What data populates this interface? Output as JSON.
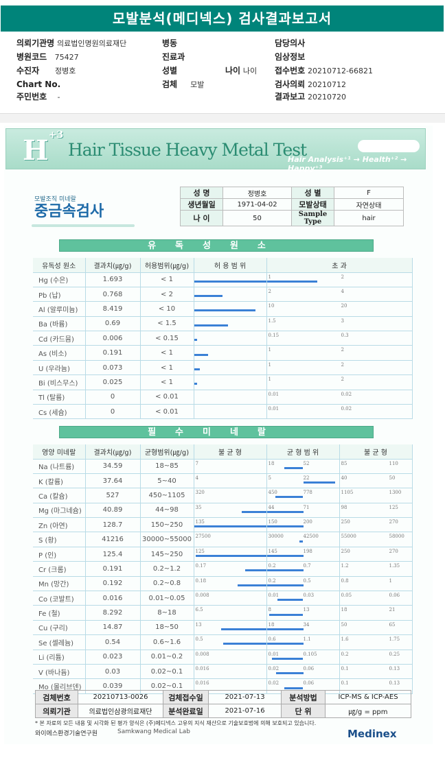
{
  "title": "모발분석(메디넥스) 검사결과보고서",
  "header": {
    "institution_label": "의뢰기관명",
    "institution": "의료법인명원의료재단",
    "ward_label": "병동",
    "doctor_label": "담당의사",
    "hospital_code_label": "병원코드",
    "hospital_code": "75427",
    "dept_label": "진료과",
    "clinical_label": "임상정보",
    "patient_label": "수진자",
    "patient": "정병호",
    "sex_label": "성별",
    "age_label": "나이",
    "age_value": "나이",
    "receipt_label": "접수번호",
    "receipt": "20210712-66821",
    "chart_label": "Chart No.",
    "specimen_label": "검체",
    "specimen": "모발",
    "request_label": "검사의뢰",
    "request": "20210712",
    "rrn_label": "주민번호",
    "rrn": "-",
    "report_label": "결과보고",
    "report": "20210720"
  },
  "banner": {
    "logo": "H+3",
    "title": "Hair Tissue Heavy Metal Test",
    "subtitle": "Hair Analysis⁺¹ → Health⁺² → Happy⁺³"
  },
  "brand": {
    "small": "모발조직 미네랄",
    "big": "중금속검사"
  },
  "patient_box": {
    "name_label": "성    명",
    "name": "정병호",
    "sex_label": "성    별",
    "sex": "F",
    "dob_label": "생년월일",
    "dob": "1971-04-02",
    "hair_label": "모발상태",
    "hair": "자연상태",
    "age_label": "나    이",
    "age": "50",
    "type_label": "Sample Type",
    "type": "hair"
  },
  "toxic": {
    "title": "유독성원소",
    "headers": [
      "유독성 원소",
      "결과치(㎍/g)",
      "허용범위(㎍/g)",
      "허 용 범 위",
      "초          과"
    ],
    "rows": [
      {
        "name": "Hg (수은)",
        "value": "1.693",
        "range": "< 1",
        "ticks": [
          "1",
          "2"
        ],
        "bar": 1.693,
        "limit": 1
      },
      {
        "name": "Pb (납)",
        "value": "0.768",
        "range": "< 2",
        "ticks": [
          "2",
          "4"
        ],
        "bar": 0.768,
        "limit": 2
      },
      {
        "name": "Al (알루미늄)",
        "value": "8.419",
        "range": "< 10",
        "ticks": [
          "10",
          "20"
        ],
        "bar": 8.419,
        "limit": 10
      },
      {
        "name": "Ba (바륨)",
        "value": "0.69",
        "range": "< 1.5",
        "ticks": [
          "1.5",
          "3"
        ],
        "bar": 0.69,
        "limit": 1.5
      },
      {
        "name": "Cd (카드뮴)",
        "value": "0.006",
        "range": "< 0.15",
        "ticks": [
          "0.15",
          "0.3"
        ],
        "bar": 0.006,
        "limit": 0.15
      },
      {
        "name": "As (비소)",
        "value": "0.191",
        "range": "< 1",
        "ticks": [
          "1",
          "2"
        ],
        "bar": 0.191,
        "limit": 1
      },
      {
        "name": "U (우라늄)",
        "value": "0.073",
        "range": "< 1",
        "ticks": [
          "1",
          "2"
        ],
        "bar": 0.073,
        "limit": 1
      },
      {
        "name": "Bi (비스무스)",
        "value": "0.025",
        "range": "< 1",
        "ticks": [
          "1",
          "2"
        ],
        "bar": 0.025,
        "limit": 1
      },
      {
        "name": "Tl (탈륨)",
        "value": "0",
        "range": "< 0.01",
        "ticks": [
          "0.01",
          "0.02"
        ],
        "bar": 0,
        "limit": 0.01
      },
      {
        "name": "Cs (세슘)",
        "value": "0",
        "range": "< 0.01",
        "ticks": [
          "0.01",
          "0.02"
        ],
        "bar": 0,
        "limit": 0.01
      }
    ]
  },
  "essential": {
    "title": "필수미네랄",
    "headers": [
      "영양 미네랄",
      "결과치(㎍/g)",
      "균형범위(㎍/g)",
      "불 균 형",
      "균 형 범 위",
      "불 균 형"
    ],
    "rows": [
      {
        "name": "Na (나트륨)",
        "value": "34.59",
        "range": "18~85",
        "ticks": [
          "7",
          "18",
          "52",
          "85",
          "110"
        ],
        "low": 18,
        "high": 85,
        "v": 34.59
      },
      {
        "name": "K (칼륨)",
        "value": "37.64",
        "range": "5~40",
        "ticks": [
          "4",
          "5",
          "22",
          "40",
          "50"
        ],
        "low": 5,
        "high": 40,
        "v": 37.64
      },
      {
        "name": "Ca (칼슘)",
        "value": "527",
        "range": "450~1105",
        "ticks": [
          "320",
          "450",
          "778",
          "1105",
          "1300"
        ],
        "low": 450,
        "high": 1105,
        "v": 527
      },
      {
        "name": "Mg (마그네슘)",
        "value": "40.89",
        "range": "44~98",
        "ticks": [
          "35",
          "44",
          "71",
          "98",
          "125"
        ],
        "low": 44,
        "high": 98,
        "v": 40.89
      },
      {
        "name": "Zn (아연)",
        "value": "128.7",
        "range": "150~250",
        "ticks": [
          "135",
          "150",
          "200",
          "250",
          "270"
        ],
        "low": 150,
        "high": 250,
        "v": 128.7
      },
      {
        "name": "S (황)",
        "value": "41216",
        "range": "30000~55000",
        "ticks": [
          "27500",
          "30000",
          "42500",
          "55000",
          "58000"
        ],
        "low": 30000,
        "high": 55000,
        "v": 41216
      },
      {
        "name": "P (인)",
        "value": "125.4",
        "range": "145~250",
        "ticks": [
          "125",
          "145",
          "198",
          "250",
          "270"
        ],
        "low": 145,
        "high": 250,
        "v": 125.4
      },
      {
        "name": "Cr (크롬)",
        "value": "0.191",
        "range": "0.2~1.2",
        "ticks": [
          "0.17",
          "0.2",
          "0.7",
          "1.2",
          "1.35"
        ],
        "low": 0.2,
        "high": 1.2,
        "v": 0.191
      },
      {
        "name": "Mn (망간)",
        "value": "0.192",
        "range": "0.2~0.8",
        "ticks": [
          "0.18",
          "0.2",
          "0.5",
          "0.8",
          "1"
        ],
        "low": 0.2,
        "high": 0.8,
        "v": 0.192
      },
      {
        "name": "Co (코발트)",
        "value": "0.016",
        "range": "0.01~0.05",
        "ticks": [
          "0.008",
          "0.01",
          "0.03",
          "0.05",
          "0.06"
        ],
        "low": 0.01,
        "high": 0.05,
        "v": 0.016
      },
      {
        "name": "Fe (철)",
        "value": "8.292",
        "range": "8~18",
        "ticks": [
          "6.5",
          "8",
          "13",
          "18",
          "21"
        ],
        "low": 8,
        "high": 18,
        "v": 8.292
      },
      {
        "name": "Cu (구리)",
        "value": "14.87",
        "range": "18~50",
        "ticks": [
          "13",
          "18",
          "34",
          "50",
          "65"
        ],
        "low": 18,
        "high": 50,
        "v": 14.87
      },
      {
        "name": "Se (셀레늄)",
        "value": "0.54",
        "range": "0.6~1.6",
        "ticks": [
          "0.5",
          "0.6",
          "1.1",
          "1.6",
          "1.75"
        ],
        "low": 0.6,
        "high": 1.6,
        "v": 0.54
      },
      {
        "name": "Li (리튬)",
        "value": "0.023",
        "range": "0.01~0.2",
        "ticks": [
          "0.008",
          "0.01",
          "0.105",
          "0.2",
          "0.25"
        ],
        "low": 0.01,
        "high": 0.2,
        "v": 0.023
      },
      {
        "name": "V (바나듐)",
        "value": "0.03",
        "range": "0.02~0.1",
        "ticks": [
          "0.016",
          "0.02",
          "0.06",
          "0.1",
          "0.13"
        ],
        "low": 0.02,
        "high": 0.1,
        "v": 0.03
      },
      {
        "name": "Mo (몰리브덴)",
        "value": "0.039",
        "range": "0.02~0.1",
        "ticks": [
          "0.016",
          "0.02",
          "0.06",
          "0.1",
          "0.13"
        ],
        "low": 0.02,
        "high": 0.1,
        "v": 0.039
      }
    ]
  },
  "footer": {
    "test_no_label": "검체번호",
    "test_no": "20210713-0026",
    "received_label": "검체접수일",
    "received": "2021-07-13",
    "method_label": "분석방법",
    "method": "ICP-MS & ICP-AES",
    "org_label": "의뢰기관",
    "org": "의료법인삼광의료재단",
    "completed_label": "분석완료일",
    "completed": "2021-07-16",
    "unit_label": "단    위",
    "unit": "㎍/g = ppm",
    "note": "* 본 자료의 모든 내용 및 시각화 된 평가 양식은 (주)메디넥스 고유의 지식 재산으로 기술보호법에 의해 보호되고 있습니다.",
    "org1": "와이에스환경기술연구원",
    "org2": "Samkwang Medical Lab",
    "medinex": "Medinex"
  }
}
